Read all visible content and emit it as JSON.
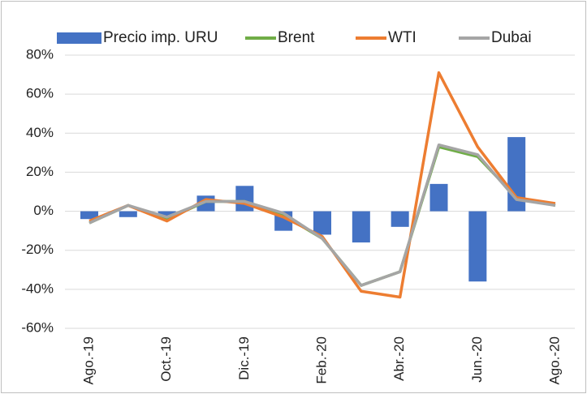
{
  "chart_data": {
    "type": "bar",
    "categories": [
      "Ago.-19",
      null,
      "Oct.-19",
      null,
      "Dic.-19",
      null,
      "Feb.-20",
      null,
      "Abr.-20",
      null,
      "Jun.-20",
      null,
      "Ago.-20"
    ],
    "series": [
      {
        "name": "Precio imp. URU",
        "type": "bar",
        "color": "#4472c4",
        "values": [
          -4,
          -3,
          -3,
          8,
          13,
          -10,
          -12,
          -16,
          -8,
          14,
          -36,
          38,
          null
        ]
      },
      {
        "name": "Brent",
        "type": "line",
        "color": "#70ad47",
        "values": [
          -6,
          3,
          -4,
          5,
          5,
          -2,
          -14,
          -38,
          -31,
          33,
          28,
          7,
          3
        ]
      },
      {
        "name": "WTI",
        "type": "line",
        "color": "#ed7d31",
        "values": [
          -5,
          3,
          -5,
          6,
          4,
          -3,
          -13,
          -41,
          -44,
          71,
          33,
          7,
          4
        ]
      },
      {
        "name": "Dubai",
        "type": "line",
        "color": "#a5a5a5",
        "values": [
          -6,
          3,
          -3,
          5,
          5,
          -1,
          -14,
          -38,
          -31,
          34,
          29,
          6,
          3
        ]
      }
    ],
    "ylim": [
      -60,
      80
    ],
    "yticks": [
      {
        "value": -60,
        "label": "-60%"
      },
      {
        "value": -40,
        "label": "-40%"
      },
      {
        "value": -20,
        "label": "-20%"
      },
      {
        "value": 0,
        "label": "0%"
      },
      {
        "value": 20,
        "label": "20%"
      },
      {
        "value": 40,
        "label": "40%"
      },
      {
        "value": 60,
        "label": "60%"
      },
      {
        "value": 80,
        "label": "80%"
      }
    ],
    "grid": true,
    "legend": "top"
  }
}
